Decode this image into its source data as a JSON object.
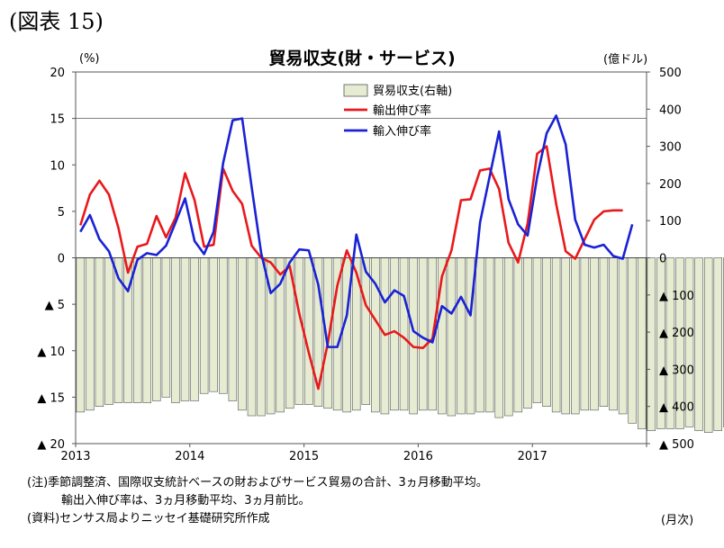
{
  "figure_label": "(図表 15)",
  "chart_data": {
    "type": "bar+line",
    "title": "貿易収支(財・サービス)",
    "left_axis": {
      "unit": "(%)",
      "range": [
        -20,
        20
      ],
      "ticks": [
        "20",
        "15",
        "10",
        "5",
        "0",
        "▲ 5",
        "▲ 10",
        "▲ 15",
        "▲ 20"
      ]
    },
    "right_axis": {
      "unit": "(億ドル)",
      "range": [
        -500,
        500
      ],
      "ticks": [
        "500",
        "400",
        "300",
        "200",
        "100",
        "0",
        "▲ 100",
        "▲ 200",
        "▲ 300",
        "▲ 400",
        "▲ 500"
      ]
    },
    "x_tick_labels": [
      "2013",
      "2014",
      "2015",
      "2016",
      "2017"
    ],
    "x_label": "(月次)",
    "grid": "horizontal at 15 (%) only",
    "legend_position": "top-center",
    "colors": {
      "bars": "#e6ecd2",
      "bar_edge": "#555555",
      "export": "#e8191c",
      "import": "#1a22d4"
    },
    "series": [
      {
        "name": "貿易収支(右軸)",
        "axis": "right",
        "kind": "bar",
        "values": [
          -415,
          -410,
          -400,
          -395,
          -390,
          -390,
          -390,
          -390,
          -385,
          -375,
          -390,
          -385,
          -385,
          -365,
          -360,
          -365,
          -385,
          -410,
          -425,
          -425,
          -420,
          -415,
          -405,
          -395,
          -395,
          -400,
          -405,
          -410,
          -415,
          -410,
          -395,
          -415,
          -420,
          -410,
          -410,
          -420,
          -410,
          -410,
          -420,
          -425,
          -420,
          -420,
          -415,
          -415,
          -430,
          -425,
          -415,
          -405,
          -390,
          -400,
          -415,
          -420,
          -420,
          -410,
          -410,
          -400,
          -410,
          -420,
          -445,
          -460,
          -465,
          -460,
          -460,
          -460,
          -455,
          -465,
          -470,
          -465,
          -455,
          -450,
          -450,
          -455
        ]
      },
      {
        "name": "輸出伸び率",
        "axis": "left",
        "kind": "line",
        "values": [
          3.5,
          6.8,
          8.3,
          6.8,
          3.2,
          -1.6,
          1.2,
          1.5,
          4.5,
          2.2,
          4.3,
          9.1,
          6.2,
          1.2,
          1.4,
          9.6,
          7.2,
          5.8,
          1.3,
          0.0,
          -0.5,
          -1.8,
          -0.9,
          -6.0,
          -10.2,
          -14.1,
          -9.2,
          -3.0,
          0.8,
          -1.6,
          -5.1,
          -6.7,
          -8.3,
          -7.9,
          -8.6,
          -9.6,
          -9.7,
          -8.7,
          -2.0,
          0.8,
          6.2,
          6.3,
          9.4,
          9.6,
          7.4,
          1.6,
          -0.5,
          3.7,
          11.2,
          12.0,
          5.8,
          0.7,
          -0.1,
          2.0,
          4.1,
          5.0,
          5.1,
          5.1
        ]
      },
      {
        "name": "輸入伸び率",
        "axis": "left",
        "kind": "line",
        "values": [
          2.8,
          4.6,
          2.0,
          0.7,
          -2.2,
          -3.6,
          -0.2,
          0.5,
          0.3,
          1.3,
          3.8,
          6.4,
          1.8,
          0.4,
          2.8,
          10.2,
          14.8,
          15.0,
          7.6,
          0.5,
          -3.8,
          -2.8,
          -0.5,
          0.9,
          0.8,
          -2.9,
          -9.6,
          -9.6,
          -6.2,
          2.5,
          -1.5,
          -2.8,
          -4.8,
          -3.5,
          -4.1,
          -7.9,
          -8.6,
          -9.1,
          -5.2,
          -6.0,
          -4.2,
          -6.2,
          3.8,
          8.7,
          13.6,
          6.3,
          3.6,
          2.4,
          8.7,
          13.4,
          15.3,
          12.2,
          4.1,
          1.4,
          1.1,
          1.4,
          0.2,
          -0.1,
          3.6
        ]
      }
    ]
  },
  "notes": {
    "line1": "(注)季節調整済、国際収支統計ベースの財およびサービス貿易の合計、3ヵ月移動平均。",
    "line2": "輸出入伸び率は、3ヵ月移動平均、3ヵ月前比。",
    "line3": "(資料)センサス局よりニッセイ基礎研究所作成"
  }
}
